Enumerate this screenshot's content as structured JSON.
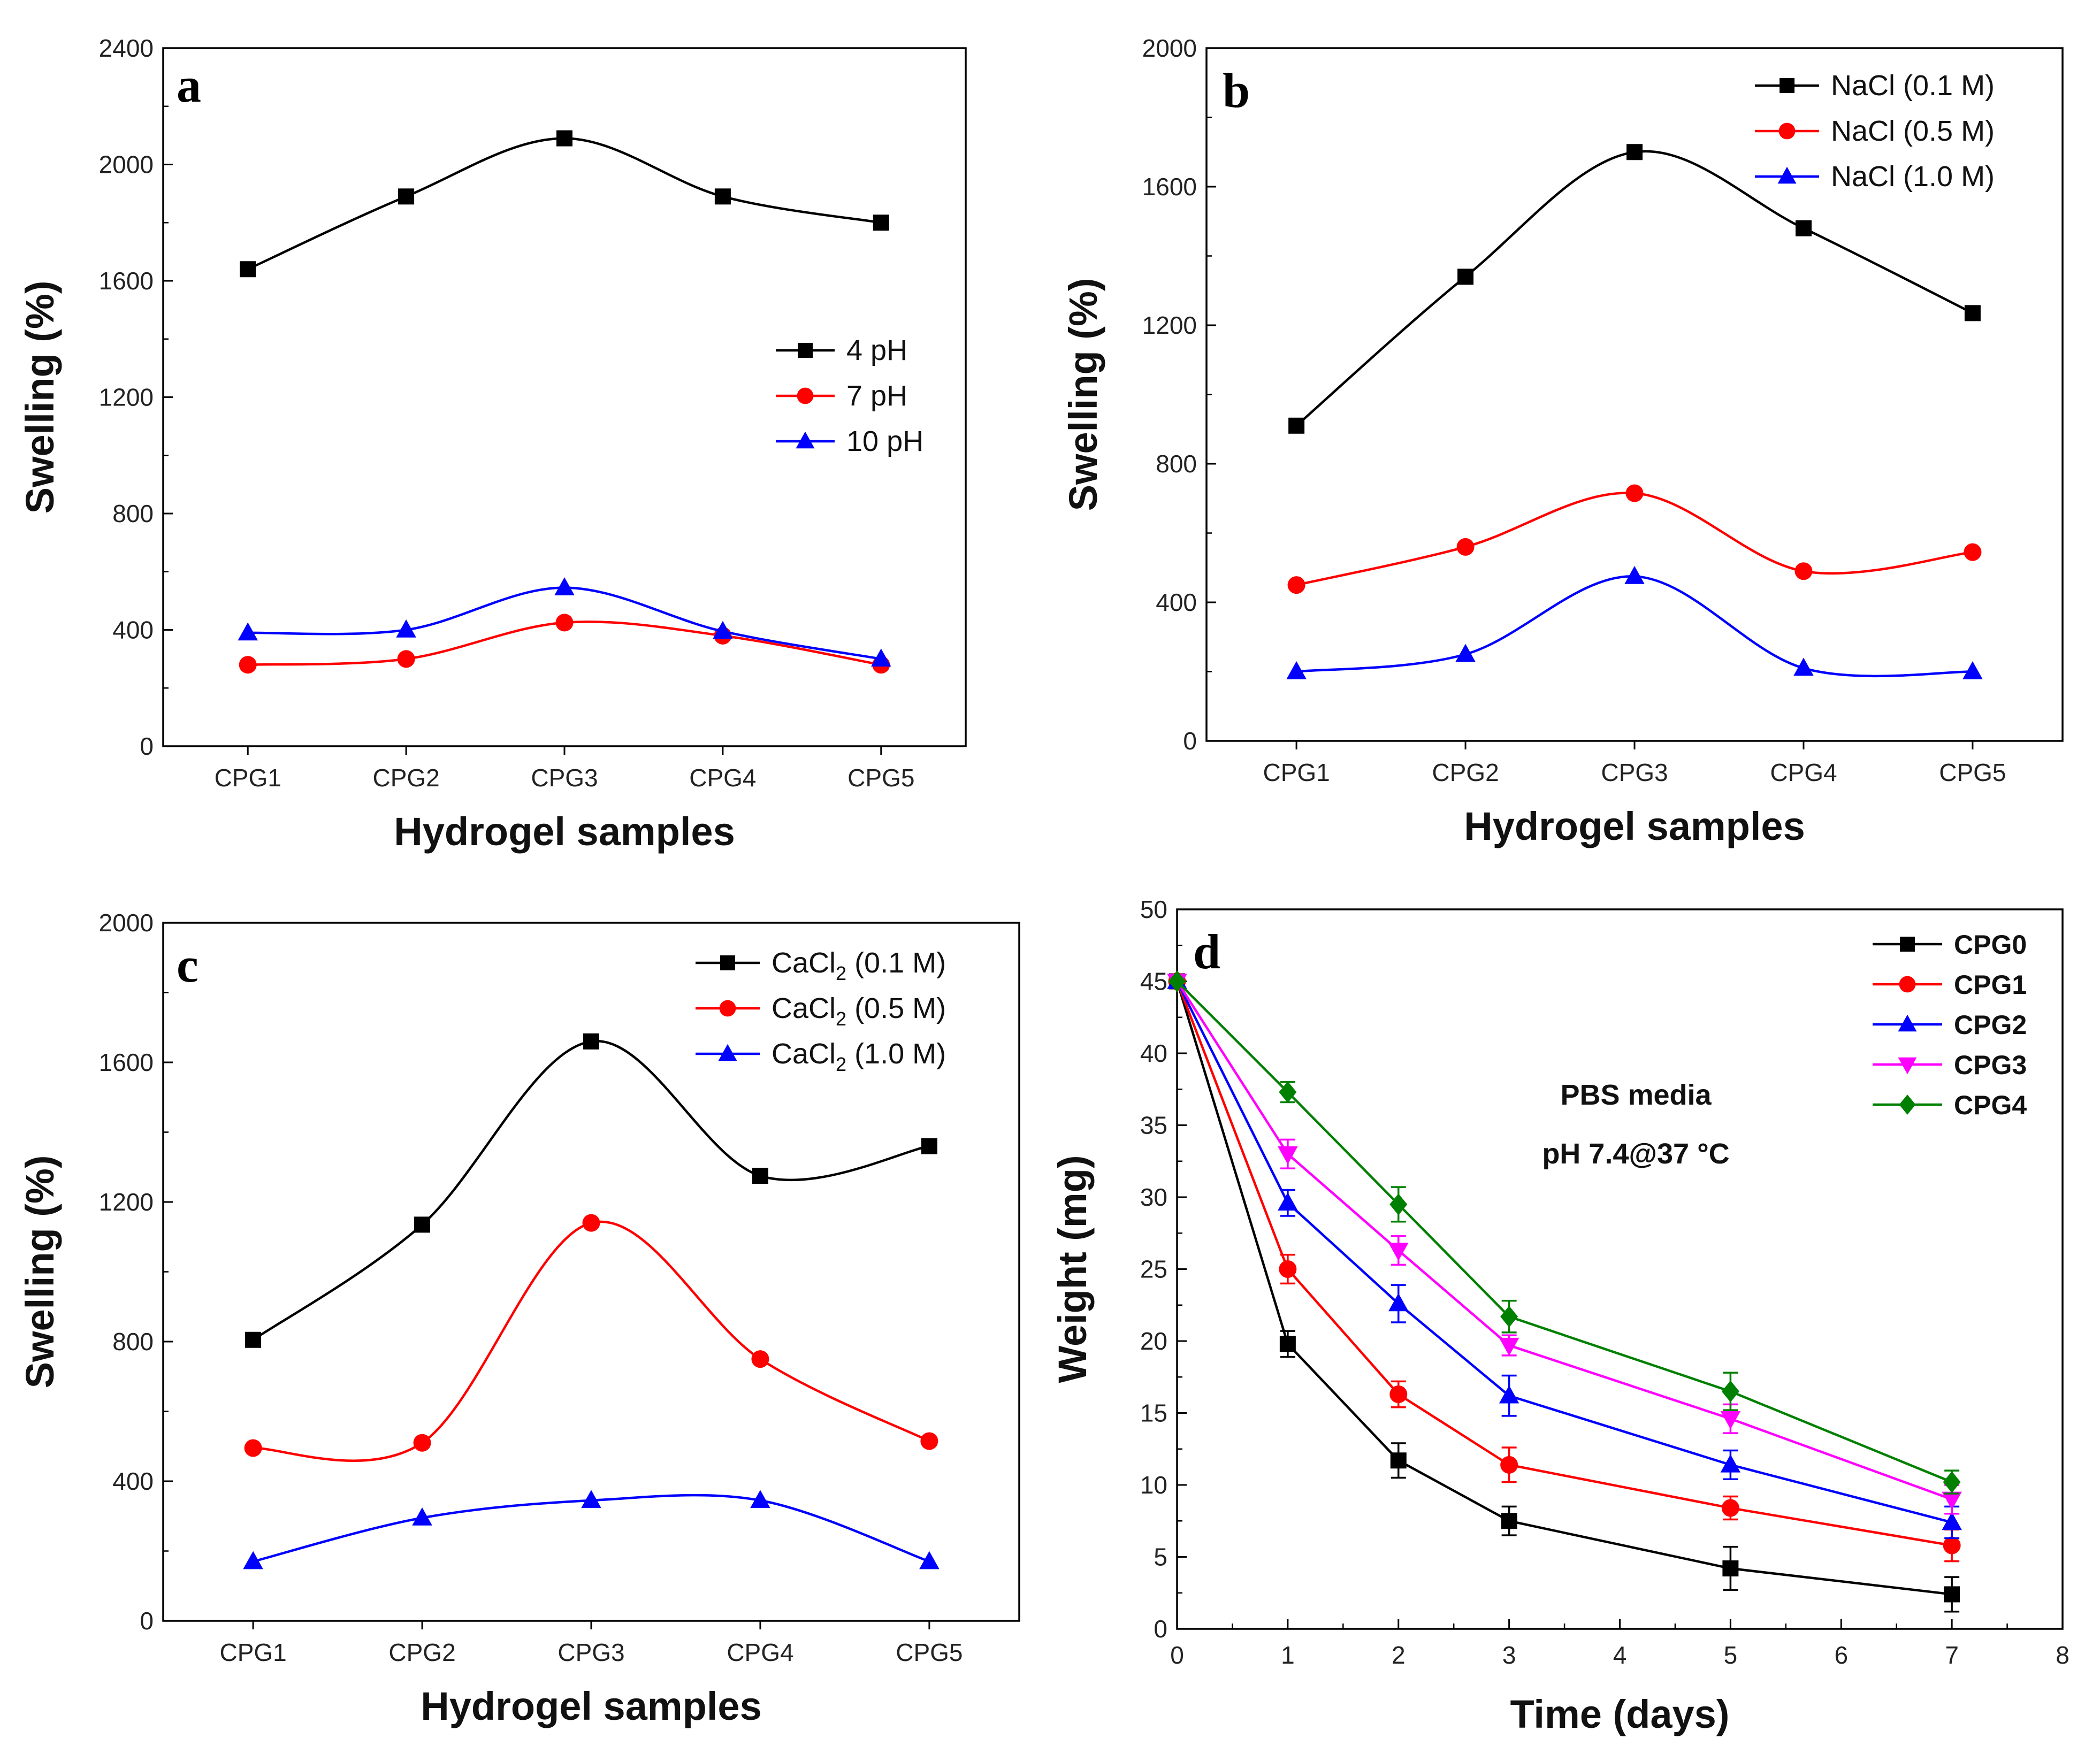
{
  "chart_data": [
    {
      "id": "a",
      "panel_label": "a",
      "type": "line",
      "xlabel": "Hydrogel samples",
      "ylabel": "Swelling (%)",
      "categories": [
        "CPG1",
        "CPG2",
        "CPG3",
        "CPG4",
        "CPG5"
      ],
      "ylim": [
        0,
        2400
      ],
      "yticks": [
        "0",
        "400",
        "800",
        "1200",
        "1600",
        "2000",
        "2400"
      ],
      "legend_position": "middle-right",
      "series": [
        {
          "name": "4 pH",
          "label_main": "4 pH",
          "color": "#000000",
          "marker": "square",
          "values": [
            1640,
            1890,
            2090,
            1890,
            1800
          ]
        },
        {
          "name": "7 pH",
          "label_main": "7 pH",
          "color": "#ff0000",
          "marker": "circle",
          "values": [
            280,
            300,
            425,
            380,
            280
          ]
        },
        {
          "name": "10 pH",
          "label_main": "10 pH",
          "color": "#0000ff",
          "marker": "triangle",
          "values": [
            390,
            400,
            545,
            395,
            300
          ]
        }
      ]
    },
    {
      "id": "b",
      "panel_label": "b",
      "type": "line",
      "xlabel": "Hydrogel samples",
      "ylabel": "Swelling (%)",
      "categories": [
        "CPG1",
        "CPG2",
        "CPG3",
        "CPG4",
        "CPG5"
      ],
      "ylim": [
        0,
        2000
      ],
      "yticks": [
        "0",
        "400",
        "800",
        "1200",
        "1600",
        "2000"
      ],
      "legend_position": "top-right",
      "series": [
        {
          "name": "NaCl (0.1 M)",
          "label_main": "NaCl (0.1 M)",
          "color": "#000000",
          "marker": "square",
          "values": [
            910,
            1340,
            1700,
            1480,
            1235
          ]
        },
        {
          "name": "NaCl (0.5 M)",
          "label_main": "NaCl (0.5 M)",
          "color": "#ff0000",
          "marker": "circle",
          "values": [
            450,
            560,
            715,
            490,
            545
          ]
        },
        {
          "name": "NaCl (1.0 M)",
          "label_main": "NaCl (1.0 M)",
          "color": "#0000ff",
          "marker": "triangle",
          "values": [
            200,
            250,
            475,
            210,
            200
          ]
        }
      ]
    },
    {
      "id": "c",
      "panel_label": "c",
      "type": "line",
      "xlabel": "Hydrogel samples",
      "ylabel": "Swelling (%)",
      "categories": [
        "CPG1",
        "CPG2",
        "CPG3",
        "CPG4",
        "CPG5"
      ],
      "ylim": [
        0,
        2000
      ],
      "yticks": [
        "0",
        "400",
        "800",
        "1200",
        "1600",
        "2000"
      ],
      "legend_position": "top-right",
      "series": [
        {
          "name": "CaCl2 (0.1 M)",
          "label_main": "CaCl",
          "label_sub": "2",
          "label_tail": " (0.1 M)",
          "color": "#000000",
          "marker": "square",
          "values": [
            805,
            1135,
            1660,
            1275,
            1360
          ]
        },
        {
          "name": "CaCl2 (0.5 M)",
          "label_main": "CaCl",
          "label_sub": "2",
          "label_tail": " (0.5 M)",
          "color": "#ff0000",
          "marker": "circle",
          "values": [
            495,
            510,
            1140,
            750,
            515
          ]
        },
        {
          "name": "CaCl2 (1.0 M)",
          "label_main": "CaCl",
          "label_sub": "2",
          "label_tail": " (1.0 M)",
          "color": "#0000ff",
          "marker": "triangle",
          "values": [
            170,
            295,
            345,
            345,
            170
          ]
        }
      ]
    },
    {
      "id": "d",
      "panel_label": "d",
      "type": "line",
      "xlabel": "Time (days)",
      "ylabel": "Weight (mg)",
      "x": [
        0,
        1,
        2,
        3,
        5,
        7
      ],
      "xlim": [
        0,
        8
      ],
      "xticks": [
        "0",
        "1",
        "2",
        "3",
        "4",
        "5",
        "6",
        "7",
        "8"
      ],
      "ylim": [
        0,
        50
      ],
      "yticks": [
        "0",
        "5",
        "10",
        "15",
        "20",
        "25",
        "30",
        "35",
        "40",
        "45",
        "50"
      ],
      "legend_position": "top-right",
      "annotations": [
        "PBS media",
        "pH 7.4@37 °C"
      ],
      "series": [
        {
          "name": "CPG0",
          "label_main": "CPG0",
          "color": "#000000",
          "marker": "square",
          "values": [
            45,
            19.8,
            11.7,
            7.5,
            4.2,
            2.4
          ],
          "errors": [
            0,
            0.9,
            1.2,
            1.0,
            1.5,
            1.2
          ]
        },
        {
          "name": "CPG1",
          "label_main": "CPG1",
          "color": "#ff0000",
          "marker": "circle",
          "values": [
            45,
            25.0,
            16.3,
            11.4,
            8.4,
            5.8
          ],
          "errors": [
            0,
            1.0,
            0.9,
            1.2,
            0.8,
            1.1
          ]
        },
        {
          "name": "CPG2",
          "label_main": "CPG2",
          "color": "#0000ff",
          "marker": "triangle",
          "values": [
            45,
            29.6,
            22.6,
            16.2,
            11.4,
            7.4
          ],
          "errors": [
            0,
            0.9,
            1.3,
            1.4,
            1.0,
            1.1
          ]
        },
        {
          "name": "CPG3",
          "label_main": "CPG3",
          "color": "#ff00ff",
          "marker": "triangle-down",
          "values": [
            45,
            33.0,
            26.3,
            19.7,
            14.6,
            9.0
          ],
          "errors": [
            0,
            1.0,
            1.0,
            0.7,
            1.0,
            1.0
          ]
        },
        {
          "name": "CPG4",
          "label_main": "CPG4",
          "color": "#008000",
          "marker": "diamond",
          "values": [
            45,
            37.3,
            29.5,
            21.7,
            16.5,
            10.2
          ],
          "errors": [
            0,
            0.7,
            1.2,
            1.1,
            1.3,
            0.8
          ]
        }
      ]
    }
  ]
}
